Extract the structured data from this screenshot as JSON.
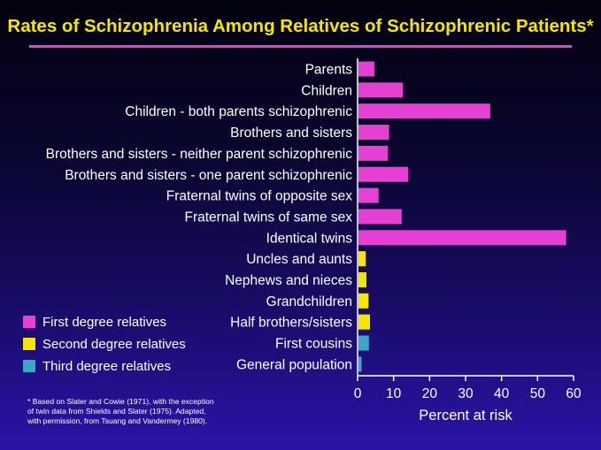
{
  "title": "Rates of Schizophrenia Among Relatives of Schizophrenic Patients*",
  "colors": {
    "title": "#f4e600",
    "rule": "#e63fd4",
    "first_degree": "#e63fd4",
    "second_degree": "#f4e600",
    "third_degree": "#3aa6c8",
    "text": "#ffffff",
    "axis": "#ffffff"
  },
  "legend": [
    {
      "label": "First degree relatives",
      "color": "#e63fd4"
    },
    {
      "label": "Second degree relatives",
      "color": "#f4e600"
    },
    {
      "label": "Third degree relatives",
      "color": "#3aa6c8"
    }
  ],
  "footnote": "* Based on Slater and Cowie (1971), with the exception of twin data from Shields and Slater (1975). Adapted, with permission, from Tsuang and Vandermey (1980).",
  "chart_data": {
    "type": "bar",
    "orientation": "horizontal",
    "title": "Rates of Schizophrenia Among Relatives of Schizophrenic Patients*",
    "xlabel": "Percent at risk",
    "ylabel": "",
    "xlim": [
      0,
      60
    ],
    "xticks": [
      0,
      10,
      20,
      30,
      40,
      50,
      60
    ],
    "grid": false,
    "legend_position": "bottom-left",
    "categories": [
      "Parents",
      "Children",
      "Children - both parents schizophrenic",
      "Brothers and sisters",
      "Brothers and sisters - neither parent schizophrenic",
      "Brothers and sisters - one parent schizophrenic",
      "Fraternal twins of opposite sex",
      "Fraternal twins of same sex",
      "Identical twins",
      "Uncles and aunts",
      "Nephews and nieces",
      "Grandchildren",
      "Half brothers/sisters",
      "First cousins",
      "General population"
    ],
    "values": [
      4.4,
      12.3,
      36.6,
      8.5,
      8.2,
      13.8,
      5.6,
      12.0,
      57.7,
      2.0,
      2.2,
      2.8,
      3.2,
      2.9,
      0.86
    ],
    "groups": [
      "First degree relatives",
      "First degree relatives",
      "First degree relatives",
      "First degree relatives",
      "First degree relatives",
      "First degree relatives",
      "First degree relatives",
      "First degree relatives",
      "First degree relatives",
      "Second degree relatives",
      "Second degree relatives",
      "Second degree relatives",
      "Second degree relatives",
      "Third degree relatives",
      "Third degree relatives"
    ]
  }
}
